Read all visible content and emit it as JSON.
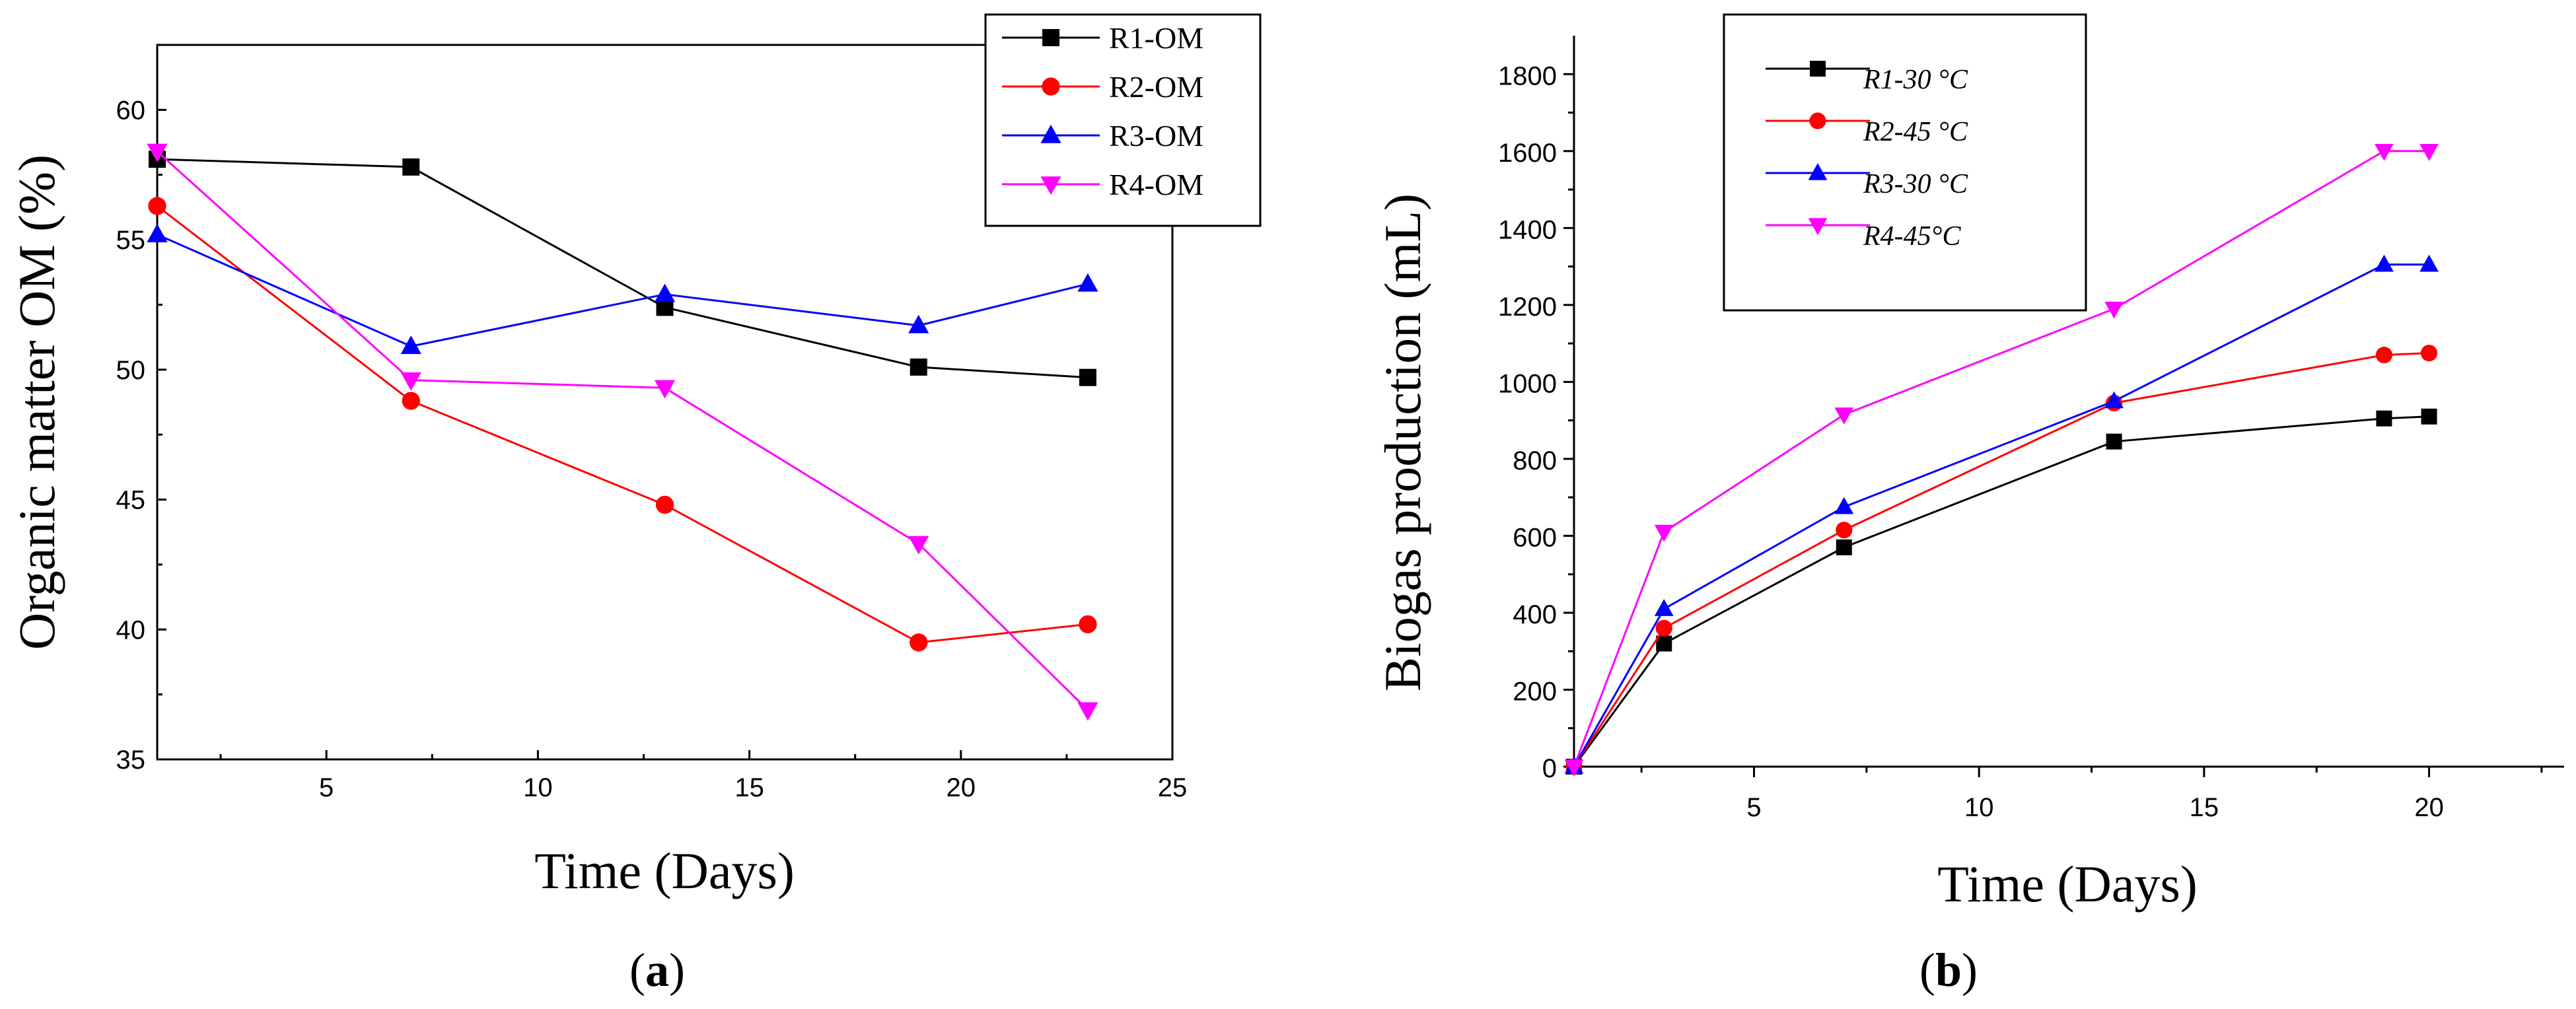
{
  "chart_data": [
    {
      "type": "line",
      "panel_label": {
        "open": "(",
        "letter": "a",
        "close": ")"
      },
      "title": "",
      "xlabel": "Time (Days)",
      "ylabel": "Organic matter OM  (%)",
      "xlim": [
        1,
        25
      ],
      "ylim": [
        35,
        62.5
      ],
      "xticks": [
        5,
        10,
        15,
        20,
        25
      ],
      "yticks": [
        35,
        40,
        45,
        50,
        55,
        60
      ],
      "legend_position": "top-right",
      "series": [
        {
          "name": "R1-OM",
          "color": "#000000",
          "marker": "square",
          "x": [
            1,
            7,
            13,
            19,
            23
          ],
          "values": [
            58.1,
            57.8,
            52.4,
            50.1,
            49.7
          ]
        },
        {
          "name": "R2-OM",
          "color": "#ff0000",
          "marker": "circle",
          "x": [
            1,
            7,
            13,
            19,
            23
          ],
          "values": [
            56.3,
            48.8,
            44.8,
            39.5,
            40.2
          ]
        },
        {
          "name": "R3-OM",
          "color": "#0000ff",
          "marker": "triangle-up",
          "x": [
            1,
            7,
            13,
            19,
            23
          ],
          "values": [
            55.2,
            50.9,
            52.9,
            51.7,
            53.3
          ]
        },
        {
          "name": "R4-OM",
          "color": "#ff00ff",
          "marker": "triangle-down",
          "x": [
            1,
            7,
            13,
            19,
            23
          ],
          "values": [
            58.4,
            49.6,
            49.3,
            43.3,
            36.9
          ]
        }
      ]
    },
    {
      "type": "line",
      "panel_label": {
        "open": "(",
        "letter": "b",
        "close": ")"
      },
      "title": "",
      "xlabel": "Time (Days)",
      "ylabel": "Biogas production (mL)",
      "xlim": [
        1,
        23
      ],
      "ylim": [
        0,
        1900
      ],
      "xticks": [
        5,
        10,
        15,
        20
      ],
      "yticks": [
        0,
        200,
        400,
        600,
        800,
        1000,
        1200,
        1400,
        1600,
        1800
      ],
      "legend_position": "top-left",
      "series": [
        {
          "name": "R1-30 °C",
          "color": "#000000",
          "marker": "square",
          "x": [
            1,
            3,
            7,
            13,
            19,
            20
          ],
          "values": [
            0,
            320,
            570,
            845,
            905,
            910
          ]
        },
        {
          "name": "R2-45 °C",
          "color": "#ff0000",
          "marker": "circle",
          "x": [
            1,
            3,
            7,
            13,
            19,
            20
          ],
          "values": [
            0,
            360,
            615,
            945,
            1070,
            1075
          ]
        },
        {
          "name": "R3-30 °C",
          "color": "#0000ff",
          "marker": "triangle-up",
          "x": [
            1,
            3,
            7,
            13,
            19,
            20
          ],
          "values": [
            0,
            410,
            675,
            950,
            1305,
            1305
          ]
        },
        {
          "name": "R4-45°C",
          "color": "#ff00ff",
          "marker": "triangle-down",
          "x": [
            1,
            3,
            7,
            13,
            19,
            20
          ],
          "values": [
            0,
            610,
            915,
            1190,
            1600,
            1600
          ]
        }
      ]
    }
  ]
}
